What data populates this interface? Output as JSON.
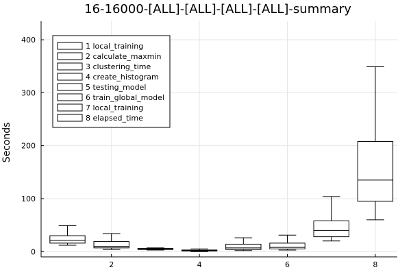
{
  "chart_data": {
    "type": "boxplot",
    "title": "16-16000-[ALL]-[ALL]-[ALL]-[ALL]-summary",
    "xlabel": "",
    "ylabel": "Seconds",
    "xlim": [
      0.4,
      8.5
    ],
    "ylim": [
      -10,
      435
    ],
    "x_ticks": [
      2,
      4,
      6,
      8
    ],
    "y_ticks": [
      0,
      100,
      200,
      300,
      400
    ],
    "grid": true,
    "legend_position": "top-left",
    "series": [
      {
        "name": "1 local_training",
        "x": 1,
        "whisker_low": 12,
        "q1": 16,
        "median": 21,
        "q3": 30,
        "whisker_high": 49
      },
      {
        "name": "2 calculate_maxmin",
        "x": 2,
        "whisker_low": 4,
        "q1": 7,
        "median": 10,
        "q3": 19,
        "whisker_high": 34
      },
      {
        "name": "3 clustering_time",
        "x": 3,
        "whisker_low": 3,
        "q1": 4,
        "median": 5,
        "q3": 6,
        "whisker_high": 7
      },
      {
        "name": "4 create_histogram",
        "x": 4,
        "whisker_low": 0,
        "q1": 1,
        "median": 2,
        "q3": 3,
        "whisker_high": 5
      },
      {
        "name": "5 testing_model",
        "x": 5,
        "whisker_low": 2,
        "q1": 4,
        "median": 7,
        "q3": 14,
        "whisker_high": 26
      },
      {
        "name": "6 train_global_model",
        "x": 6,
        "whisker_low": 3,
        "q1": 5,
        "median": 8,
        "q3": 16,
        "whisker_high": 31
      },
      {
        "name": "7 local_training",
        "x": 7,
        "whisker_low": 20,
        "q1": 28,
        "median": 40,
        "q3": 58,
        "whisker_high": 104
      },
      {
        "name": "8 elapsed_time",
        "x": 8,
        "whisker_low": 60,
        "q1": 95,
        "median": 135,
        "q3": 208,
        "whisker_high": 349
      }
    ]
  }
}
